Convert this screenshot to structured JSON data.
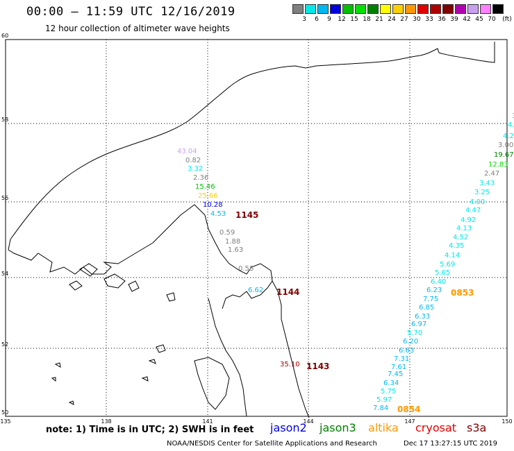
{
  "title": "00:00 – 11:59 UTC 12/16/2019",
  "subtitle": "12 hour collection of altimeter wave heights",
  "scale": {
    "unit": "(ft)",
    "bins": [
      {
        "label": "3",
        "color": "#808080"
      },
      {
        "label": "6",
        "color": "#00e8e8"
      },
      {
        "label": "9",
        "color": "#00b8f0"
      },
      {
        "label": "12",
        "color": "#0000e0"
      },
      {
        "label": "15",
        "color": "#00c000"
      },
      {
        "label": "18",
        "color": "#00e000"
      },
      {
        "label": "21",
        "color": "#008000"
      },
      {
        "label": "24",
        "color": "#ffff00"
      },
      {
        "label": "27",
        "color": "#ffd000"
      },
      {
        "label": "30",
        "color": "#ff9800"
      },
      {
        "label": "33",
        "color": "#e00000"
      },
      {
        "label": "36",
        "color": "#b00000"
      },
      {
        "label": "39",
        "color": "#800000"
      },
      {
        "label": "42",
        "color": "#b000b0"
      },
      {
        "label": "45",
        "color": "#c8a0f0"
      },
      {
        "label": "70",
        "color": "#ff80ff"
      },
      {
        "label": "",
        "color": "#000000"
      }
    ]
  },
  "axes": {
    "lat_labels": [
      "50",
      "52",
      "54",
      "56",
      "58",
      "60"
    ],
    "lon_labels": [
      "135",
      "138",
      "141",
      "144",
      "147",
      "150"
    ]
  },
  "wave_heights": [
    {
      "v": "43.04",
      "c": "#c8a0f0"
    },
    {
      "v": "0.82",
      "c": "#808080"
    },
    {
      "v": "3.32",
      "c": "#00e8e8"
    },
    {
      "v": "2.36",
      "c": "#808080"
    },
    {
      "v": "15.46",
      "c": "#00c000"
    },
    {
      "v": "25.66",
      "c": "#ffd000"
    },
    {
      "v": "10.28",
      "c": "#0000e0"
    },
    {
      "v": "4.53",
      "c": "#00b8f0"
    },
    {
      "v": "0.59",
      "c": "#808080"
    },
    {
      "v": "1.88",
      "c": "#808080"
    },
    {
      "v": "1.63",
      "c": "#808080"
    },
    {
      "v": "0.58",
      "c": "#808080"
    },
    {
      "v": "6.62",
      "c": "#00b8f0"
    },
    {
      "v": "35.10",
      "c": "#b00000"
    },
    {
      "v": "3",
      "c": "#00e8e8"
    },
    {
      "v": "4.",
      "c": "#00e8e8"
    },
    {
      "v": "4.2",
      "c": "#00e8e8"
    },
    {
      "v": "3.00",
      "c": "#808080"
    },
    {
      "v": "19.67",
      "c": "#008000"
    },
    {
      "v": "12.83",
      "c": "#00e000"
    },
    {
      "v": "2.47",
      "c": "#808080"
    },
    {
      "v": "3.43",
      "c": "#00e8e8"
    },
    {
      "v": "3.25",
      "c": "#00e8e8"
    },
    {
      "v": "4.00",
      "c": "#00e8e8"
    },
    {
      "v": "4.47",
      "c": "#00e8e8"
    },
    {
      "v": "4.92",
      "c": "#00e8e8"
    },
    {
      "v": "4.13",
      "c": "#00e8e8"
    },
    {
      "v": "4.52",
      "c": "#00e8e8"
    },
    {
      "v": "4.35",
      "c": "#00e8e8"
    },
    {
      "v": "4.14",
      "c": "#00e8e8"
    },
    {
      "v": "5.69",
      "c": "#00e8e8"
    },
    {
      "v": "5.65",
      "c": "#00e8e8"
    },
    {
      "v": "6.40",
      "c": "#00e8e8"
    },
    {
      "v": "6.23",
      "c": "#00b8f0"
    },
    {
      "v": "7.75",
      "c": "#00b8f0"
    },
    {
      "v": "6.85",
      "c": "#00b8f0"
    },
    {
      "v": "6.33",
      "c": "#00b8f0"
    },
    {
      "v": "6.97",
      "c": "#00b8f0"
    },
    {
      "v": "5.70",
      "c": "#00e8e8"
    },
    {
      "v": "6.20",
      "c": "#00b8f0"
    },
    {
      "v": "6.63",
      "c": "#00b8f0"
    },
    {
      "v": "7.31",
      "c": "#00b8f0"
    },
    {
      "v": "7.61",
      "c": "#00b8f0"
    },
    {
      "v": "7.45",
      "c": "#00b8f0"
    },
    {
      "v": "6.34",
      "c": "#00b8f0"
    },
    {
      "v": "5.75",
      "c": "#00e8e8"
    },
    {
      "v": "5.97",
      "c": "#00e8e8"
    },
    {
      "v": "7.84",
      "c": "#00b8f0"
    }
  ],
  "pass_times": [
    {
      "t": "1145",
      "c": "#800000"
    },
    {
      "t": "1144",
      "c": "#800000"
    },
    {
      "t": "1143",
      "c": "#800000"
    },
    {
      "t": "0853",
      "c": "#ff9800"
    },
    {
      "t": "0854",
      "c": "#ff9800"
    }
  ],
  "note": "note: 1) Time is in UTC; 2) SWH is in feet",
  "satellites": [
    {
      "name": "jason2",
      "color": "#0000e0"
    },
    {
      "name": "jason3",
      "color": "#008000"
    },
    {
      "name": "altika",
      "color": "#ff9800"
    },
    {
      "name": "cryosat",
      "color": "#e00000"
    },
    {
      "name": "s3a",
      "color": "#800000"
    }
  ],
  "credit": "NOAA/NESDIS Center for Satellite Applications and Research",
  "generated": "Dec 17 13:27:15 UTC 2019"
}
